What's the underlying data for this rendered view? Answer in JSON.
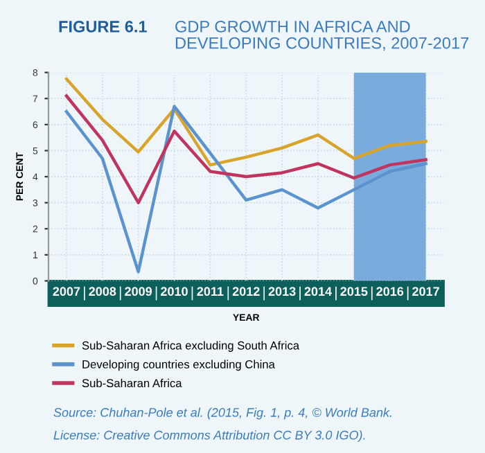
{
  "chart_data": {
    "type": "line",
    "title": "FIGURE 6.1",
    "subtitle": "GDP GROWTH IN AFRICA AND\nDEVELOPING COUNTRIES, 2007-2017",
    "xlabel": "YEAR",
    "ylabel": "PER CENT",
    "categories": [
      "2007",
      "2008",
      "2009",
      "2010",
      "2011",
      "2012",
      "2013",
      "2014",
      "2015",
      "2016",
      "2017"
    ],
    "series": [
      {
        "name": "Sub-Saharan Africa excluding South Africa",
        "color": "#d9a42b",
        "values": [
          7.75,
          6.2,
          4.95,
          6.6,
          4.45,
          4.75,
          5.1,
          5.6,
          4.7,
          5.2,
          5.35
        ]
      },
      {
        "name": "Developing countries excluding China",
        "color": "#5b93cf",
        "values": [
          6.5,
          4.7,
          0.35,
          6.7,
          4.9,
          3.1,
          3.5,
          2.8,
          3.5,
          4.2,
          4.5
        ]
      },
      {
        "name": "Sub-Saharan Africa",
        "color": "#c0355f",
        "values": [
          7.1,
          5.4,
          3.0,
          5.75,
          4.2,
          4.0,
          4.15,
          4.5,
          3.95,
          4.45,
          4.65
        ]
      }
    ],
    "ylim": [
      0,
      8
    ],
    "yticks": [
      0,
      1,
      2,
      3,
      4,
      5,
      6,
      7,
      8
    ],
    "bands": [
      {
        "axis": "x",
        "from": "2015",
        "to": "2017",
        "color": "#79acdc"
      }
    ],
    "grid": true,
    "legend": "bottom",
    "marker": "none",
    "line_style": "solid",
    "annotations": [
      "Source: Chuhan-Pole et al. (2015, Fig. 1, p. 4, © World Bank.",
      "License: Creative Commons Attribution CC BY 3.0 IGO)."
    ]
  }
}
